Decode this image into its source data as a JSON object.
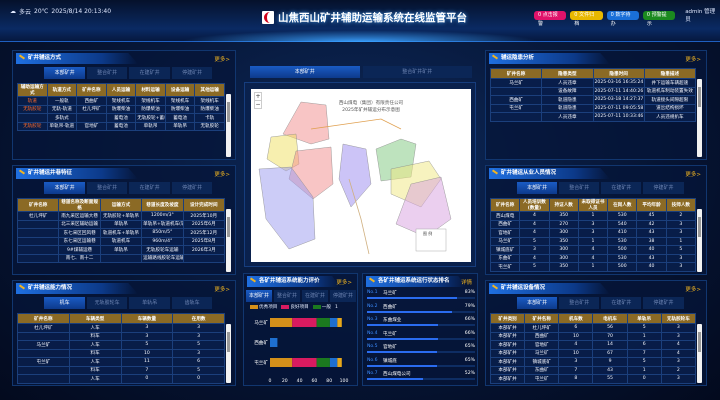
{
  "header": {
    "weather": "多云",
    "temp": "20℃",
    "datetime": "2025/8/14 20:13:40",
    "title": "山焦西山矿井辅助运输系统在线监管平台",
    "badges": [
      {
        "label": "0 点击报警",
        "color": "#e0126a"
      },
      {
        "label": "0 文件归档",
        "color": "#e8b800"
      },
      {
        "label": "0 数字待办",
        "color": "#1a6fd8"
      },
      {
        "label": "0 预警提示",
        "color": "#1b8a1f"
      }
    ],
    "user": "admin 管理员"
  },
  "more_label": "更多>",
  "mine_tabs": [
    "本部矿井",
    "整合矿井",
    "在建矿井",
    "停建矿井"
  ],
  "left1": {
    "title": "矿井辅运方式",
    "headers": [
      "辅助运输方式",
      "轨道方式",
      "矿井名称",
      "人员运输",
      "材料运输",
      "设备运输",
      "其他运输"
    ],
    "rows": [
      [
        "轨道",
        "一般轨",
        "西曲矿",
        "架线机车",
        "架线机车",
        "架线机车",
        "架线机车"
      ],
      [
        "无轨胶轮",
        "无轨-轨道",
        "杜儿坪矿",
        "防爆柴油",
        "防爆柴油",
        "防爆柴油",
        "防爆柴油"
      ],
      [
        "",
        "多轨式",
        "",
        "蓄电池",
        "无轨胶轮+蓄电池",
        "蓄电池",
        "卡轨"
      ],
      [
        "无轨胶轮",
        "单轨吊-轨道",
        "官地矿",
        "蓄电池",
        "单轨吊",
        "单轨吊",
        "无轨胶轮"
      ]
    ]
  },
  "left2": {
    "title": "矿井辅运井巷特征",
    "headers": [
      "矿井名称",
      "巷道名称及断面规格",
      "运输方式",
      "巷道长度及坡度",
      "设计完成时间"
    ],
    "rows": [
      [
        "杜儿坪矿",
        "南九采区运输大巷",
        "无轨胶轮+单轨吊",
        "1200m/3°",
        "2025年10月"
      ],
      [
        "",
        "北三采区辅助运输",
        "单轨吊",
        "单轨吊+轨道机车(辅助)",
        "2025年6月"
      ],
      [
        "",
        "东七采区回风巷",
        "轨道机车+单轨吊",
        "850m/5°",
        "2025年12月"
      ],
      [
        "",
        "东七采区运输巷",
        "轨道机车",
        "960m/4°",
        "2025年8月"
      ],
      [
        "",
        "9#煤辅运巷",
        "单轨吊",
        "无轨胶轮车运输",
        "2026年3月"
      ],
      [
        "",
        "南七、南十二",
        "",
        "运输路线胶轮车运输",
        ""
      ]
    ]
  },
  "left3": {
    "title": "矿井辅运能力情况",
    "tabs": [
      "机车",
      "无轨胶轮车",
      "单轨吊",
      "齿轨车"
    ],
    "headers": [
      "矿井名称",
      "车辆类型",
      "车辆数量",
      "在用数"
    ],
    "rows": [
      [
        "杜儿坪矿",
        "人车",
        "3",
        "3"
      ],
      [
        "",
        "料车",
        "3",
        "3"
      ],
      [
        "马兰矿",
        "人车",
        "5",
        "5"
      ],
      [
        "",
        "料车",
        "10",
        "3"
      ],
      [
        "屯兰矿",
        "人车",
        "11",
        "6"
      ],
      [
        "",
        "料车",
        "7",
        "5"
      ],
      [
        "",
        "人车",
        "0",
        "0"
      ]
    ]
  },
  "center": {
    "tabs": [
      "本部矿井",
      "整合矿井矿井"
    ],
    "map_title_1": "西山煤电（集团）有限责任公司",
    "map_title_2": "2025年矿井辅运分布示意图",
    "map_legend": "图 例"
  },
  "eval": {
    "title": "各矿井辅运系统能力评价",
    "more": "更多>",
    "tabs": [
      "本部矿井",
      "整合矿井",
      "在建矿井",
      "停建矿井"
    ]
  },
  "chart_data": {
    "type": "bar",
    "orientation": "horizontal",
    "stacked": true,
    "categories": [
      "马兰矿",
      "西曲矿",
      "屯兰矿"
    ],
    "series": [
      {
        "name": "优秀项目",
        "color": "#d4901a",
        "values": [
          30,
          0,
          30
        ]
      },
      {
        "name": "良好项目",
        "color": "#d81b60",
        "values": [
          33,
          0,
          33
        ]
      },
      {
        "name": "一般",
        "color": "#1b7a1f",
        "values": [
          18,
          0,
          18
        ]
      },
      {
        "name": "1",
        "color": "#1e6fd0",
        "values": [
          10,
          10,
          10
        ]
      },
      {
        "color": "#e8a81a",
        "values": [
          6,
          0,
          6
        ]
      }
    ],
    "xticks": [
      "0",
      "20",
      "40",
      "60",
      "80",
      "100"
    ],
    "xlim": [
      0,
      100
    ]
  },
  "rank": {
    "title": "各矿井辅运系统运行状态排名",
    "more": "详情",
    "items": [
      {
        "no": "No.1",
        "name": "马兰矿",
        "pct": "83%",
        "value": 83
      },
      {
        "no": "No.2",
        "name": "西曲矿",
        "pct": "79%",
        "value": 79
      },
      {
        "no": "No.3",
        "name": "东曲煤业",
        "pct": "66%",
        "value": 66
      },
      {
        "no": "No.4",
        "name": "屯兰矿",
        "pct": "66%",
        "value": 66
      },
      {
        "no": "No.5",
        "name": "官地矿",
        "pct": "65%",
        "value": 65
      },
      {
        "no": "No.6",
        "name": "镇城底",
        "pct": "65%",
        "value": 65
      },
      {
        "no": "No.7",
        "name": "西山煤电公司",
        "pct": "52%",
        "value": 52
      }
    ]
  },
  "right1": {
    "title": "辅运隐患分析",
    "headers": [
      "矿井名称",
      "隐患类型",
      "隐患时间",
      "隐患描述"
    ],
    "rows": [
      [
        "马兰矿",
        "人员违章",
        "2025-03-16 16:35:24",
        "井下运输车辆超速"
      ],
      [
        "",
        "设备故障",
        "2025-07-11 14:40:26",
        "轨道机车制动装置失效"
      ],
      [
        "西曲矿",
        "轨道隐患",
        "2025-03-18 14:27:37",
        "轨道接头间隙超限"
      ],
      [
        "屯兰矿",
        "轨道隐患",
        "2025-07-11 09:05:58",
        "道岔结构损坏"
      ],
      [
        "",
        "人员违章",
        "2025-07-11 10:33:46",
        "人员违规扒车"
      ]
    ]
  },
  "right2": {
    "title": "矿井辅运从业人员情况",
    "headers": [
      "矿井名称",
      "人员培训数(数量)",
      "持证人数",
      "未取得证书人员",
      "在岗人数",
      "平均年龄",
      "技师人数"
    ],
    "rows": [
      [
        "西山煤电",
        "4",
        "350",
        "1",
        "530",
        "45",
        "2"
      ],
      [
        "西曲矿",
        "4",
        "270",
        "3",
        "540",
        "42",
        "3"
      ],
      [
        "官地矿",
        "4",
        "300",
        "3",
        "410",
        "43",
        "3"
      ],
      [
        "马兰矿",
        "5",
        "350",
        "1",
        "530",
        "38",
        "1"
      ],
      [
        "镇城底矿",
        "3",
        "300",
        "4",
        "500",
        "40",
        "5"
      ],
      [
        "东曲矿",
        "4",
        "300",
        "4",
        "530",
        "43",
        "3"
      ],
      [
        "屯兰矿",
        "5",
        "350",
        "1",
        "500",
        "40",
        "3"
      ]
    ]
  },
  "right3": {
    "title": "矿井辅运设备情况",
    "headers": [
      "矿井类别",
      "矿井名称",
      "机车数",
      "电机车",
      "单轨吊",
      "无轨胶轮车"
    ],
    "rows": [
      [
        "本部矿井",
        "杜儿坪矿",
        "6",
        "56",
        "5",
        "3"
      ],
      [
        "本部矿井",
        "西曲矿",
        "10",
        "70",
        "1",
        "3"
      ],
      [
        "本部矿井",
        "官地矿",
        "4",
        "14",
        "6",
        "4"
      ],
      [
        "本部矿井",
        "马兰矿",
        "10",
        "67",
        "7",
        "4"
      ],
      [
        "本部矿井",
        "镇城底矿",
        "3",
        "9",
        "5",
        "3"
      ],
      [
        "本部矿井",
        "东曲矿",
        "7",
        "43",
        "1",
        "2"
      ],
      [
        "本部矿井",
        "屯兰矿",
        "8",
        "55",
        "0",
        "3"
      ]
    ]
  }
}
